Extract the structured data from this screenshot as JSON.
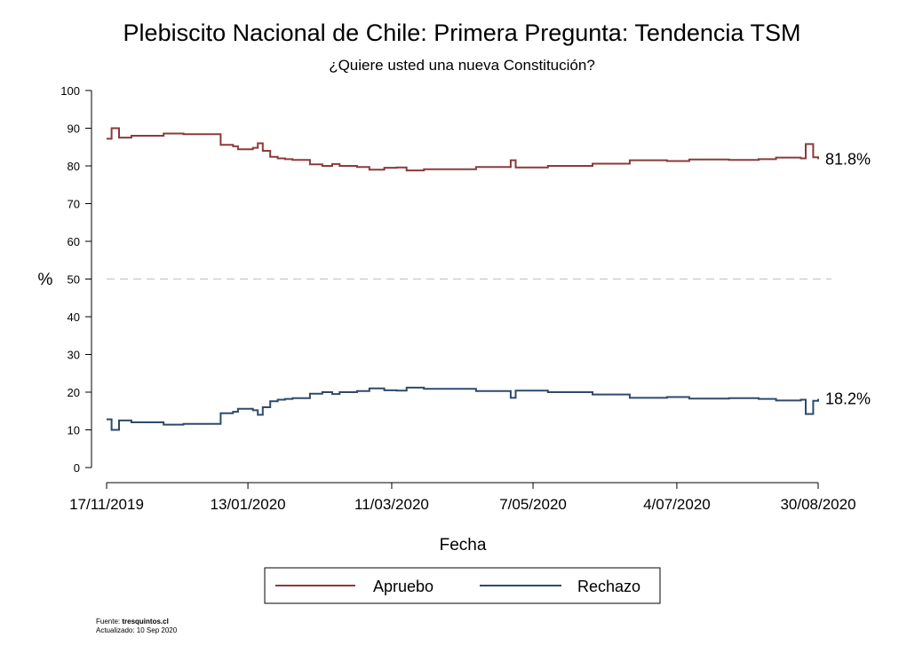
{
  "chart_data": {
    "type": "line",
    "title": "Plebiscito Nacional de Chile: Primera Pregunta: Tendencia TSM",
    "subtitle": "¿Quiere usted una nueva Constitución?",
    "xlabel": "Fecha",
    "ylabel": "%",
    "ylim": [
      0,
      100
    ],
    "yticks": [
      0,
      10,
      20,
      30,
      40,
      50,
      60,
      70,
      80,
      90,
      100
    ],
    "xlim": [
      "2019-11-17",
      "2020-08-30"
    ],
    "xticks": [
      {
        "date": "2019-11-17",
        "label": "17/11/2019"
      },
      {
        "date": "2020-01-13",
        "label": "13/01/2020"
      },
      {
        "date": "2020-03-11",
        "label": "11/03/2020"
      },
      {
        "date": "2020-05-07",
        "label": "7/05/2020"
      },
      {
        "date": "2020-07-04",
        "label": "4/07/2020"
      },
      {
        "date": "2020-08-30",
        "label": "30/08/2020"
      }
    ],
    "reference_line": {
      "y": 50,
      "style": "dashed"
    },
    "grid": false,
    "legend_position": "bottom",
    "step": true,
    "series": [
      {
        "name": "Apruebo",
        "color": "#8b3a3a",
        "end_label": "81.8%",
        "points": [
          [
            "2019-11-17",
            87.2
          ],
          [
            "2019-11-19",
            90.0
          ],
          [
            "2019-11-22",
            87.5
          ],
          [
            "2019-11-27",
            88.0
          ],
          [
            "2019-12-10",
            88.6
          ],
          [
            "2019-12-18",
            88.4
          ],
          [
            "2020-01-02",
            85.6
          ],
          [
            "2020-01-07",
            85.2
          ],
          [
            "2020-01-09",
            84.4
          ],
          [
            "2020-01-15",
            84.8
          ],
          [
            "2020-01-17",
            86.0
          ],
          [
            "2020-01-19",
            84.0
          ],
          [
            "2020-01-22",
            82.4
          ],
          [
            "2020-01-25",
            82.0
          ],
          [
            "2020-01-28",
            81.8
          ],
          [
            "2020-01-31",
            81.6
          ],
          [
            "2020-02-07",
            80.4
          ],
          [
            "2020-02-12",
            80.0
          ],
          [
            "2020-02-16",
            80.5
          ],
          [
            "2020-02-19",
            80.0
          ],
          [
            "2020-02-26",
            79.7
          ],
          [
            "2020-03-02",
            79.0
          ],
          [
            "2020-03-08",
            79.5
          ],
          [
            "2020-03-13",
            79.6
          ],
          [
            "2020-03-17",
            78.8
          ],
          [
            "2020-03-24",
            79.1
          ],
          [
            "2020-04-14",
            79.7
          ],
          [
            "2020-04-28",
            81.5
          ],
          [
            "2020-04-30",
            79.6
          ],
          [
            "2020-05-13",
            80.0
          ],
          [
            "2020-05-31",
            80.6
          ],
          [
            "2020-06-15",
            81.5
          ],
          [
            "2020-06-30",
            81.3
          ],
          [
            "2020-07-09",
            81.7
          ],
          [
            "2020-07-25",
            81.6
          ],
          [
            "2020-08-06",
            81.8
          ],
          [
            "2020-08-13",
            82.2
          ],
          [
            "2020-08-23",
            82.0
          ],
          [
            "2020-08-25",
            85.8
          ],
          [
            "2020-08-28",
            82.3
          ],
          [
            "2020-08-30",
            81.8
          ]
        ]
      },
      {
        "name": "Rechazo",
        "color": "#2e4a6b",
        "end_label": "18.2%",
        "points": [
          [
            "2019-11-17",
            12.8
          ],
          [
            "2019-11-19",
            10.0
          ],
          [
            "2019-11-22",
            12.5
          ],
          [
            "2019-11-27",
            12.0
          ],
          [
            "2019-12-10",
            11.4
          ],
          [
            "2019-12-18",
            11.6
          ],
          [
            "2020-01-02",
            14.4
          ],
          [
            "2020-01-07",
            14.8
          ],
          [
            "2020-01-09",
            15.6
          ],
          [
            "2020-01-15",
            15.2
          ],
          [
            "2020-01-17",
            14.0
          ],
          [
            "2020-01-19",
            16.0
          ],
          [
            "2020-01-22",
            17.6
          ],
          [
            "2020-01-25",
            18.0
          ],
          [
            "2020-01-28",
            18.2
          ],
          [
            "2020-01-31",
            18.4
          ],
          [
            "2020-02-07",
            19.6
          ],
          [
            "2020-02-12",
            20.0
          ],
          [
            "2020-02-16",
            19.5
          ],
          [
            "2020-02-19",
            20.0
          ],
          [
            "2020-02-26",
            20.3
          ],
          [
            "2020-03-02",
            21.0
          ],
          [
            "2020-03-08",
            20.5
          ],
          [
            "2020-03-13",
            20.4
          ],
          [
            "2020-03-17",
            21.2
          ],
          [
            "2020-03-24",
            20.9
          ],
          [
            "2020-04-14",
            20.3
          ],
          [
            "2020-04-28",
            18.5
          ],
          [
            "2020-04-30",
            20.4
          ],
          [
            "2020-05-13",
            20.0
          ],
          [
            "2020-05-31",
            19.4
          ],
          [
            "2020-06-15",
            18.5
          ],
          [
            "2020-06-30",
            18.7
          ],
          [
            "2020-07-09",
            18.3
          ],
          [
            "2020-07-25",
            18.4
          ],
          [
            "2020-08-06",
            18.2
          ],
          [
            "2020-08-13",
            17.8
          ],
          [
            "2020-08-23",
            18.0
          ],
          [
            "2020-08-25",
            14.2
          ],
          [
            "2020-08-28",
            17.7
          ],
          [
            "2020-08-30",
            18.2
          ]
        ]
      }
    ]
  },
  "source": {
    "prefix": "Fuente: ",
    "name": "tresquintos.cl",
    "updated": "Actualizado: 10 Sep 2020"
  }
}
